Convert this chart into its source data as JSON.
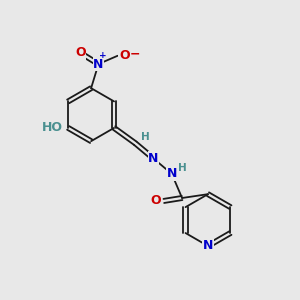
{
  "background_color": "#e8e8e8",
  "bond_color": "#1a1a1a",
  "atom_colors": {
    "O": "#cc0000",
    "N": "#0000cc",
    "C": "#1a1a1a",
    "H": "#4a9090"
  },
  "font_size_atoms": 9,
  "font_size_small": 7.5
}
